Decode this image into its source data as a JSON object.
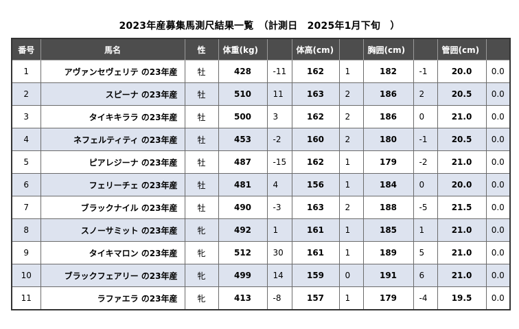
{
  "title": "2023年産募集馬測尺結果一覧　（計測日　2025年1月下旬　）",
  "headers": [
    "番号",
    "馬名",
    "性",
    "体重(kg)",
    "",
    "体高(cm)",
    "",
    "胸囲(cm)",
    "",
    "管囲(cm)",
    ""
  ],
  "rows": [
    {
      "no": "1",
      "name": "アヴァンセヴェリテ の23年産",
      "sex": "牡",
      "weight": "428",
      "weight_diff": "-11",
      "height": "162",
      "height_diff": "1",
      "girth": "182",
      "girth_diff": "-1",
      "cannon": "20.0",
      "cannon_diff": "0.0"
    },
    {
      "no": "2",
      "name": "スピーナ の23年産",
      "sex": "牡",
      "weight": "510",
      "weight_diff": "11",
      "height": "163",
      "height_diff": "2",
      "girth": "186",
      "girth_diff": "2",
      "cannon": "20.5",
      "cannon_diff": "0.0"
    },
    {
      "no": "3",
      "name": "タイキキララ の23年産",
      "sex": "牡",
      "weight": "500",
      "weight_diff": "3",
      "height": "162",
      "height_diff": "2",
      "girth": "186",
      "girth_diff": "0",
      "cannon": "21.0",
      "cannon_diff": "0.0"
    },
    {
      "no": "4",
      "name": "ネフェルティティ の23年産",
      "sex": "牡",
      "weight": "453",
      "weight_diff": "-2",
      "height": "160",
      "height_diff": "2",
      "girth": "180",
      "girth_diff": "-1",
      "cannon": "20.5",
      "cannon_diff": "0.0"
    },
    {
      "no": "5",
      "name": "ピアレジーナ の23年産",
      "sex": "牡",
      "weight": "487",
      "weight_diff": "-15",
      "height": "162",
      "height_diff": "1",
      "girth": "179",
      "girth_diff": "-2",
      "cannon": "21.0",
      "cannon_diff": "0.0"
    },
    {
      "no": "6",
      "name": "フェリーチェ の23年産",
      "sex": "牡",
      "weight": "481",
      "weight_diff": "4",
      "height": "156",
      "height_diff": "1",
      "girth": "184",
      "girth_diff": "0",
      "cannon": "20.0",
      "cannon_diff": "0.0"
    },
    {
      "no": "7",
      "name": "ブラックナイル の23年産",
      "sex": "牡",
      "weight": "490",
      "weight_diff": "-3",
      "height": "163",
      "height_diff": "2",
      "girth": "188",
      "girth_diff": "-5",
      "cannon": "21.5",
      "cannon_diff": "0.0"
    },
    {
      "no": "8",
      "name": "スノーサミット の23年産",
      "sex": "牝",
      "weight": "492",
      "weight_diff": "1",
      "height": "161",
      "height_diff": "1",
      "girth": "185",
      "girth_diff": "1",
      "cannon": "21.0",
      "cannon_diff": "0.0"
    },
    {
      "no": "9",
      "name": "タイキマロン の23年産",
      "sex": "牝",
      "weight": "512",
      "weight_diff": "30",
      "height": "161",
      "height_diff": "1",
      "girth": "189",
      "girth_diff": "5",
      "cannon": "21.0",
      "cannon_diff": "0.0"
    },
    {
      "no": "10",
      "name": "ブラックフェアリー の23年産",
      "sex": "牝",
      "weight": "499",
      "weight_diff": "14",
      "height": "159",
      "height_diff": "0",
      "girth": "191",
      "girth_diff": "6",
      "cannon": "21.0",
      "cannon_diff": "0.0"
    },
    {
      "no": "11",
      "name": "ラファエラ の23年産",
      "sex": "牝",
      "weight": "413",
      "weight_diff": "-8",
      "height": "157",
      "height_diff": "1",
      "girth": "179",
      "girth_diff": "-4",
      "cannon": "19.5",
      "cannon_diff": "0.0"
    }
  ]
}
